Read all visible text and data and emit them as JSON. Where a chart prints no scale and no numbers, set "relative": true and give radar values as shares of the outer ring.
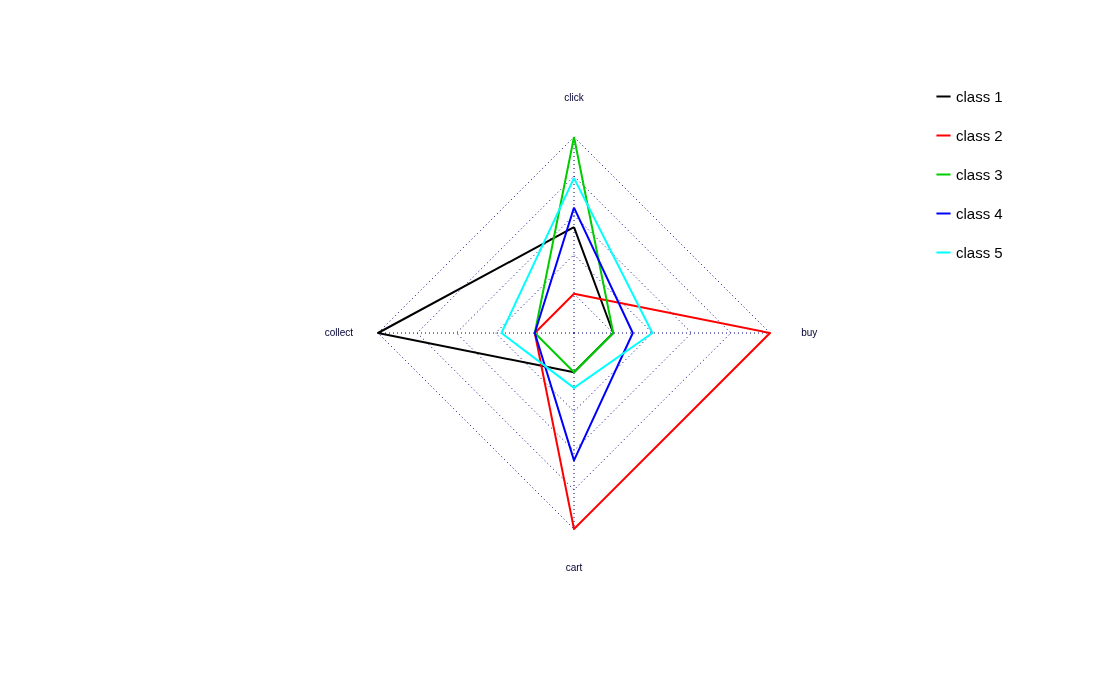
{
  "chart_data": {
    "type": "radar",
    "relative": true,
    "categories": [
      "click",
      "buy",
      "cart",
      "collect"
    ],
    "grid": true,
    "legend": "top right",
    "line_style": "solid",
    "series": [
      {
        "name": "class 1",
        "color": "#000000",
        "values": [
          0.54,
          0.2,
          0.2,
          1
        ]
      },
      {
        "name": "class 2",
        "color": "#ff0000",
        "values": [
          0.2,
          1,
          1,
          0.2
        ]
      },
      {
        "name": "class 3",
        "color": "#00cd00",
        "values": [
          1,
          0.2,
          0.2,
          0.2
        ]
      },
      {
        "name": "class 4",
        "color": "#0000ff",
        "values": [
          0.64,
          0.3,
          0.65,
          0.2
        ]
      },
      {
        "name": "class 5",
        "color": "#00ffff",
        "values": [
          0.79,
          0.4,
          0.28,
          0.37
        ]
      }
    ]
  }
}
